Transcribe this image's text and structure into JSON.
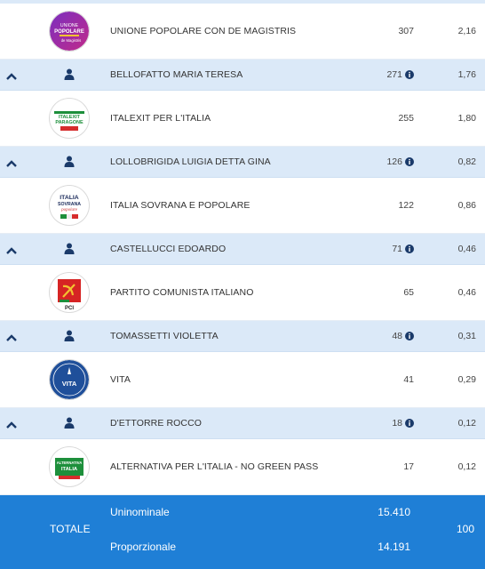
{
  "colors": {
    "accent": "#1f7fd6",
    "candidate_row": "#dbe9f8",
    "icon": "#1a3a6a"
  },
  "rows": [
    {
      "type": "party",
      "name": "UNIONE POPOLARE CON DE MAGISTRIS",
      "votes": "307",
      "pct": "2,16",
      "logo": "unione-popolare-logo",
      "logo_text": [
        "UNIONE",
        "POPOLARE",
        "de Magistris"
      ]
    },
    {
      "type": "candidate",
      "name": "BELLOFATTO MARIA TERESA",
      "votes": "271",
      "pct": "1,76"
    },
    {
      "type": "party",
      "name": "ITALEXIT PER L'ITALIA",
      "votes": "255",
      "pct": "1,80",
      "logo": "italexit-logo",
      "logo_text": [
        "ITALEXIT",
        "PARAGONE"
      ]
    },
    {
      "type": "candidate",
      "name": "LOLLOBRIGIDA LUIGIA DETTA GINA",
      "votes": "126",
      "pct": "0,82"
    },
    {
      "type": "party",
      "name": "ITALIA SOVRANA E POPOLARE",
      "votes": "122",
      "pct": "0,86",
      "logo": "italia-sovrana-logo",
      "logo_text": [
        "ITALIA",
        "SOVRANA",
        "popolare"
      ]
    },
    {
      "type": "candidate",
      "name": "CASTELLUCCI EDOARDO",
      "votes": "71",
      "pct": "0,46"
    },
    {
      "type": "party",
      "name": "PARTITO COMUNISTA ITALIANO",
      "votes": "65",
      "pct": "0,46",
      "logo": "pci-logo",
      "logo_text": [
        "PCI"
      ]
    },
    {
      "type": "candidate",
      "name": "TOMASSETTI VIOLETTA",
      "votes": "48",
      "pct": "0,31"
    },
    {
      "type": "party",
      "name": "VITA",
      "votes": "41",
      "pct": "0,29",
      "logo": "vita-logo",
      "logo_text": [
        "VITA"
      ]
    },
    {
      "type": "candidate",
      "name": "D'ETTORRE ROCCO",
      "votes": "18",
      "pct": "0,12"
    },
    {
      "type": "party",
      "name": "ALTERNATIVA PER L'ITALIA - NO GREEN PASS",
      "votes": "17",
      "pct": "0,12",
      "logo": "alternativa-logo",
      "logo_text": [
        "ALTERNATIVA",
        "ITALIA"
      ]
    }
  ],
  "total": {
    "label": "TOTALE",
    "uninominale_label": "Uninominale",
    "uninominale_votes": "15.410",
    "proporzionale_label": "Proporzionale",
    "proporzionale_votes": "14.191",
    "pct": "100"
  }
}
